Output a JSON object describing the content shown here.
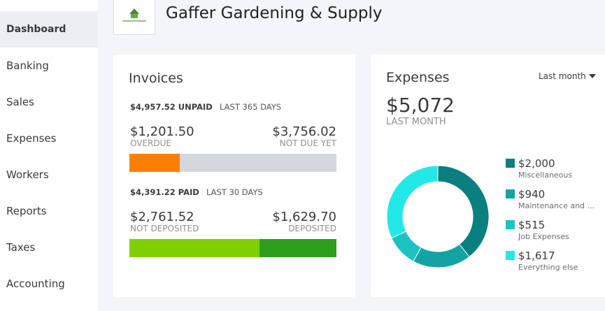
{
  "header": {
    "title": "Gaffer Gardening & Supply"
  },
  "sidebar": {
    "items": [
      "Dashboard",
      "Banking",
      "Sales",
      "Expenses",
      "Workers",
      "Reports",
      "Taxes",
      "Accounting"
    ],
    "active": 0
  },
  "invoices": {
    "title": "Invoices",
    "unpaid": {
      "amount": "$4,957.52 UNPAID",
      "period": "LAST 365 DAYS",
      "segments": [
        {
          "value": 1201.5,
          "label": "$1,201.50",
          "name": "OVERDUE",
          "color": "#ff8000"
        },
        {
          "value": 3756.02,
          "label": "$3,756.02",
          "name": "NOT DUE YET",
          "color": "#d4d7dc"
        }
      ]
    },
    "paid": {
      "amount": "$4,391.22 PAID",
      "period": "LAST 30 DAYS",
      "segments": [
        {
          "value": 2761.52,
          "label": "$2,761.52",
          "name": "NOT DEPOSITED",
          "color": "#7fd000"
        },
        {
          "value": 1629.7,
          "label": "$1,629.70",
          "name": "DEPOSITED",
          "color": "#2ca01c"
        }
      ]
    }
  },
  "expenses": {
    "title": "Expenses",
    "period_menu": "Last month",
    "total": "$5,072",
    "total_caption": "LAST MONTH",
    "chart": {
      "type": "pie",
      "segments": [
        {
          "value": 2000,
          "label": "$2,000",
          "name": "Miscellaneous",
          "color": "#0a7f7f"
        },
        {
          "value": 940,
          "label": "$940",
          "name": "Maintenance and ...",
          "color": "#14a3a3"
        },
        {
          "value": 515,
          "label": "$515",
          "name": "Job Expenses",
          "color": "#1dc2c2"
        },
        {
          "value": 1617,
          "label": "$1,617",
          "name": "Everything else",
          "color": "#22e8e8"
        }
      ]
    }
  }
}
